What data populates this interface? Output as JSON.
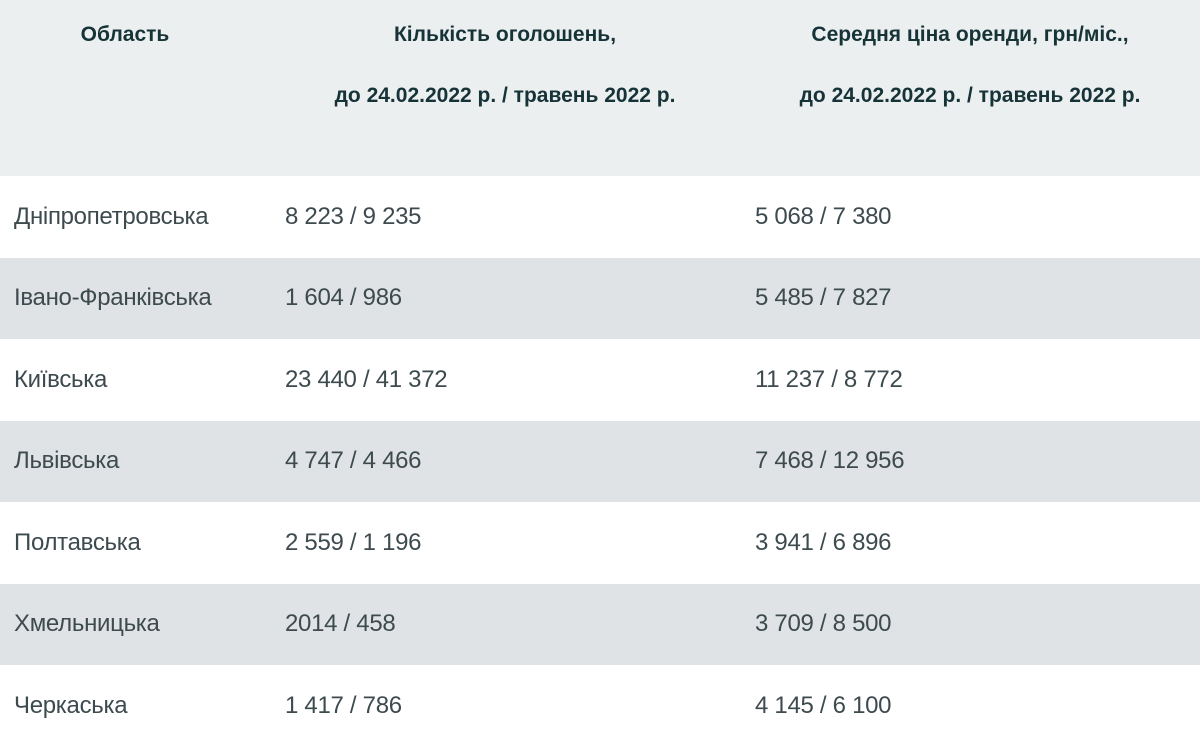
{
  "table": {
    "headers": {
      "region": {
        "line1": "Область",
        "line2": ""
      },
      "count": {
        "line1": "Кількість оголошень,",
        "line2": "до 24.02.2022 р. / травень 2022 р."
      },
      "price": {
        "line1": "Середня ціна оренди, грн/міс.,",
        "line2": "до 24.02.2022 р. / травень 2022 р."
      }
    },
    "rows": [
      {
        "region": "Дніпропетровська",
        "count": "8 223 / 9 235",
        "price": "5 068 / 7 380"
      },
      {
        "region": "Івано-Франківська",
        "count": "1 604 / 986",
        "price": "5 485 / 7 827"
      },
      {
        "region": "Київська",
        "count": "23 440 / 41 372",
        "price": "11 237 / 8 772"
      },
      {
        "region": "Львівська",
        "count": "4 747 / 4 466",
        "price": "7 468 / 12 956"
      },
      {
        "region": "Полтавська",
        "count": "2 559 / 1 196",
        "price": "3 941 / 6 896"
      },
      {
        "region": "Хмельницька",
        "count": "2014 / 458",
        "price": "3 709 / 8 500"
      },
      {
        "region": "Черкаська",
        "count": "1 417 / 786",
        "price": "4 145 / 6 100"
      }
    ]
  },
  "colors": {
    "header_bg": "#eceff0",
    "header_text": "#163338",
    "row_alt_bg": "#dfe3e5",
    "row_bg": "#ffffff",
    "body_text": "#3d4a4e"
  }
}
